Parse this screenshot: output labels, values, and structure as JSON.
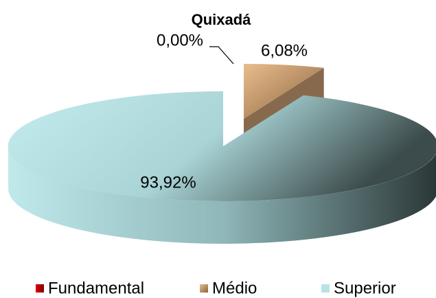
{
  "chart_data": {
    "type": "pie",
    "title": "Quixadá",
    "categories": [
      "Fundamental",
      "Médio",
      "Superior"
    ],
    "values": [
      0,
      6.08,
      93.92
    ],
    "value_labels": [
      "0,00%",
      "6,08%",
      "93,92%"
    ],
    "colors": [
      "#c00000",
      "#d9a877",
      "#b7e3e6"
    ],
    "legend": "bottom"
  }
}
